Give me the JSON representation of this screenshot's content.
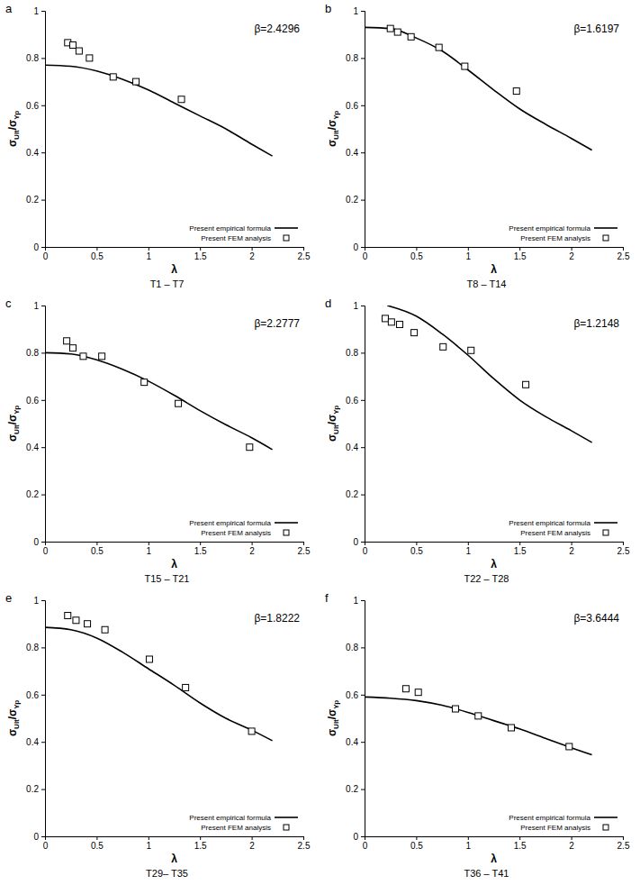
{
  "chart_data": [
    {
      "type": "line",
      "panel": "a",
      "annotation": "β=2.4296",
      "caption": "T1 – T7",
      "x_label": "λ",
      "y_label": [
        "σ",
        "Ult",
        "/σ",
        "Yp"
      ],
      "xlim": [
        0,
        2.5
      ],
      "ylim": [
        0,
        1
      ],
      "xticks": [
        0,
        0.5,
        1,
        1.5,
        2,
        2.5
      ],
      "yticks": [
        0,
        0.2,
        0.4,
        0.6,
        0.8,
        1
      ],
      "legend": "lower right",
      "series": [
        {
          "name": "Present empirical formula",
          "type": "line",
          "line_style": "solid",
          "color": "#000000",
          "x": [
            0,
            0.25,
            0.5,
            0.75,
            1,
            1.25,
            1.5,
            1.75,
            2,
            2.2
          ],
          "values": [
            0.77,
            0.765,
            0.745,
            0.71,
            0.665,
            0.61,
            0.555,
            0.5,
            0.435,
            0.385
          ]
        },
        {
          "name": "Present FEM analysis",
          "type": "scatter",
          "marker": "square",
          "color": "#000000",
          "x": [
            0.22,
            0.27,
            0.33,
            0.43,
            0.66,
            0.88,
            1.32
          ],
          "values": [
            0.865,
            0.855,
            0.83,
            0.8,
            0.72,
            0.7,
            0.625
          ]
        }
      ]
    },
    {
      "type": "line",
      "panel": "b",
      "annotation": "β=1.6197",
      "caption": "T8 – T14",
      "x_label": "λ",
      "y_label": [
        "σ",
        "Ult",
        "/σ",
        "Yp"
      ],
      "xlim": [
        0,
        2.5
      ],
      "ylim": [
        0,
        1
      ],
      "xticks": [
        0,
        0.5,
        1,
        1.5,
        2,
        2.5
      ],
      "yticks": [
        0,
        0.2,
        0.4,
        0.6,
        0.8,
        1
      ],
      "legend": "lower right",
      "series": [
        {
          "name": "Present empirical formula",
          "type": "line",
          "line_style": "solid",
          "color": "#000000",
          "x": [
            0,
            0.25,
            0.5,
            0.75,
            1,
            1.25,
            1.5,
            1.75,
            2,
            2.2
          ],
          "values": [
            0.93,
            0.925,
            0.885,
            0.83,
            0.75,
            0.665,
            0.585,
            0.52,
            0.46,
            0.41
          ]
        },
        {
          "name": "Present FEM analysis",
          "type": "scatter",
          "marker": "square",
          "color": "#000000",
          "x": [
            0.25,
            0.32,
            0.45,
            0.72,
            0.97,
            1.47
          ],
          "values": [
            0.925,
            0.91,
            0.89,
            0.845,
            0.765,
            0.66
          ]
        }
      ]
    },
    {
      "type": "line",
      "panel": "c",
      "annotation": "β=2.2777",
      "caption": "T15 – T21",
      "x_label": "λ",
      "y_label": [
        "σ",
        "Ult",
        "/σ",
        "Yp"
      ],
      "xlim": [
        0,
        2.5
      ],
      "ylim": [
        0,
        1
      ],
      "xticks": [
        0,
        0.5,
        1,
        1.5,
        2,
        2.5
      ],
      "yticks": [
        0,
        0.2,
        0.4,
        0.6,
        0.8,
        1
      ],
      "legend": "lower right",
      "series": [
        {
          "name": "Present empirical formula",
          "type": "line",
          "line_style": "solid",
          "color": "#000000",
          "x": [
            0,
            0.25,
            0.5,
            0.75,
            1,
            1.25,
            1.5,
            1.75,
            2,
            2.2
          ],
          "values": [
            0.8,
            0.795,
            0.77,
            0.73,
            0.68,
            0.62,
            0.555,
            0.495,
            0.44,
            0.39
          ]
        },
        {
          "name": "Present FEM analysis",
          "type": "scatter",
          "marker": "square",
          "color": "#000000",
          "x": [
            0.21,
            0.27,
            0.37,
            0.55,
            0.96,
            1.29,
            1.98
          ],
          "values": [
            0.85,
            0.82,
            0.785,
            0.785,
            0.675,
            0.585,
            0.4
          ]
        }
      ]
    },
    {
      "type": "line",
      "panel": "d",
      "annotation": "β=1.2148",
      "caption": "T22 – T28",
      "x_label": "λ",
      "y_label": [
        "σ",
        "Ult",
        "/σ",
        "Yp"
      ],
      "xlim": [
        0,
        2.5
      ],
      "ylim": [
        0,
        1
      ],
      "xticks": [
        0,
        0.5,
        1,
        1.5,
        2,
        2.5
      ],
      "yticks": [
        0,
        0.2,
        0.4,
        0.6,
        0.8,
        1
      ],
      "legend": "lower right",
      "series": [
        {
          "name": "Present empirical formula",
          "type": "line",
          "line_style": "solid",
          "color": "#000000",
          "x": [
            0.22,
            0.5,
            0.75,
            1,
            1.25,
            1.5,
            1.75,
            2,
            2.2
          ],
          "values": [
            1,
            0.955,
            0.88,
            0.79,
            0.69,
            0.6,
            0.53,
            0.47,
            0.42
          ]
        },
        {
          "name": "Present FEM analysis",
          "type": "scatter",
          "marker": "square",
          "color": "#000000",
          "x": [
            0.2,
            0.26,
            0.34,
            0.48,
            0.76,
            1.03,
            1.56
          ],
          "values": [
            0.945,
            0.93,
            0.92,
            0.885,
            0.825,
            0.81,
            0.665
          ]
        }
      ]
    },
    {
      "type": "line",
      "panel": "e",
      "annotation": "β=1.8222",
      "caption": "T29– T35",
      "x_label": "λ",
      "y_label": [
        "σ",
        "Ult",
        "/σ",
        "Yp"
      ],
      "xlim": [
        0,
        2.5
      ],
      "ylim": [
        0,
        1
      ],
      "xticks": [
        0,
        0.5,
        1,
        1.5,
        2,
        2.5
      ],
      "yticks": [
        0,
        0.2,
        0.4,
        0.6,
        0.8,
        1
      ],
      "legend": "lower right",
      "series": [
        {
          "name": "Present empirical formula",
          "type": "line",
          "line_style": "solid",
          "color": "#000000",
          "x": [
            0,
            0.25,
            0.5,
            0.75,
            1,
            1.25,
            1.5,
            1.75,
            2,
            2.2
          ],
          "values": [
            0.885,
            0.875,
            0.84,
            0.78,
            0.71,
            0.64,
            0.565,
            0.5,
            0.45,
            0.405
          ]
        },
        {
          "name": "Present FEM analysis",
          "type": "scatter",
          "marker": "square",
          "color": "#000000",
          "x": [
            0.22,
            0.3,
            0.41,
            0.58,
            1.01,
            1.36,
            2
          ],
          "values": [
            0.935,
            0.915,
            0.9,
            0.875,
            0.75,
            0.63,
            0.445
          ]
        }
      ]
    },
    {
      "type": "line",
      "panel": "f",
      "annotation": "β=3.6444",
      "caption": "T36 – T41",
      "x_label": "λ",
      "y_label": [
        "σ",
        "Ult",
        "/σ",
        "Yp"
      ],
      "xlim": [
        0,
        2.5
      ],
      "ylim": [
        0,
        1
      ],
      "xticks": [
        0,
        0.5,
        1,
        1.5,
        2,
        2.5
      ],
      "yticks": [
        0,
        0.2,
        0.4,
        0.6,
        0.8,
        1
      ],
      "legend": "lower right",
      "series": [
        {
          "name": "Present empirical formula",
          "type": "line",
          "line_style": "solid",
          "color": "#000000",
          "x": [
            0,
            0.25,
            0.5,
            0.75,
            1,
            1.25,
            1.5,
            1.75,
            2,
            2.2
          ],
          "values": [
            0.59,
            0.585,
            0.575,
            0.555,
            0.525,
            0.49,
            0.455,
            0.415,
            0.375,
            0.345
          ]
        },
        {
          "name": "Present FEM analysis",
          "type": "scatter",
          "marker": "square",
          "color": "#000000",
          "x": [
            0.4,
            0.52,
            0.88,
            1.1,
            1.42,
            1.98
          ],
          "values": [
            0.625,
            0.61,
            0.54,
            0.51,
            0.46,
            0.38
          ]
        }
      ]
    }
  ]
}
